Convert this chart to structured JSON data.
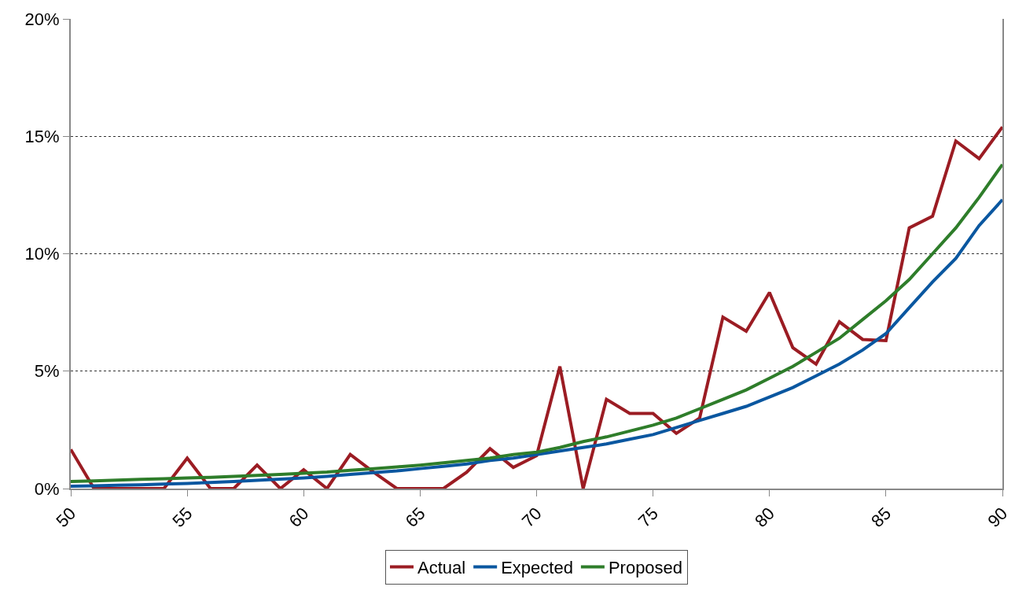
{
  "chart_data": {
    "type": "line",
    "x": [
      50,
      51,
      52,
      53,
      54,
      55,
      56,
      57,
      58,
      59,
      60,
      61,
      62,
      63,
      64,
      65,
      66,
      67,
      68,
      69,
      70,
      71,
      72,
      73,
      74,
      75,
      76,
      77,
      78,
      79,
      80,
      81,
      82,
      83,
      84,
      85,
      86,
      87,
      88,
      89,
      90
    ],
    "series": [
      {
        "name": "Actual",
        "color": "#9b1c23",
        "values": [
          1.67,
          0,
          0,
          0,
          0,
          1.3,
          0,
          0,
          1.0,
          0,
          0.8,
          0,
          1.45,
          0.7,
          0,
          0,
          0,
          0.7,
          1.7,
          0.9,
          1.4,
          5.2,
          0,
          3.8,
          3.2,
          3.2,
          2.35,
          3.0,
          7.3,
          6.7,
          8.35,
          6.0,
          5.3,
          7.1,
          6.35,
          6.3,
          11.1,
          11.6,
          14.8,
          14.05,
          15.4
        ]
      },
      {
        "name": "Expected",
        "color": "#0a57a0",
        "values": [
          0.1,
          0.12,
          0.14,
          0.16,
          0.19,
          0.22,
          0.26,
          0.3,
          0.35,
          0.4,
          0.45,
          0.52,
          0.6,
          0.68,
          0.75,
          0.85,
          0.95,
          1.05,
          1.2,
          1.3,
          1.45,
          1.6,
          1.75,
          1.9,
          2.1,
          2.3,
          2.6,
          2.9,
          3.2,
          3.5,
          3.9,
          4.3,
          4.8,
          5.3,
          5.9,
          6.6,
          7.7,
          8.8,
          9.8,
          11.2,
          12.3
        ]
      },
      {
        "name": "Proposed",
        "color": "#2e7d2a",
        "values": [
          0.3,
          0.33,
          0.36,
          0.39,
          0.42,
          0.45,
          0.48,
          0.52,
          0.56,
          0.6,
          0.65,
          0.7,
          0.78,
          0.85,
          0.92,
          1.0,
          1.1,
          1.2,
          1.3,
          1.45,
          1.55,
          1.75,
          2.0,
          2.2,
          2.45,
          2.7,
          3.0,
          3.4,
          3.8,
          4.2,
          4.7,
          5.2,
          5.8,
          6.4,
          7.2,
          8.0,
          8.9,
          10.0,
          11.1,
          12.4,
          13.8
        ]
      }
    ],
    "xlim": [
      50,
      90
    ],
    "xticks": [
      50,
      55,
      60,
      65,
      70,
      75,
      80,
      85,
      90
    ],
    "ylim": [
      0,
      20
    ],
    "yticks": [
      {
        "value": 0,
        "label": "0%"
      },
      {
        "value": 5,
        "label": "5%"
      },
      {
        "value": 10,
        "label": "10%"
      },
      {
        "value": 15,
        "label": "15%"
      },
      {
        "value": 20,
        "label": "20%"
      }
    ],
    "grid": "y",
    "legend": "bottom",
    "marker": "none",
    "line_style": "solid"
  }
}
